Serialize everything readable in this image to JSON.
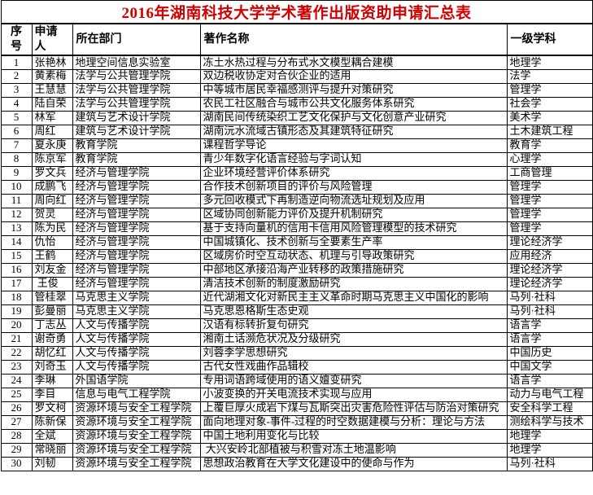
{
  "title": "2016年湖南科技大学学术著作出版资助申请汇总表",
  "colors": {
    "title_red": "#d10000",
    "border": "#000000",
    "background": "#ffffff"
  },
  "table": {
    "headers": [
      "序号",
      "申请人",
      "所在部门",
      "著作名称",
      "一级学科"
    ],
    "column_names": [
      "cell-index",
      "cell-applicant",
      "cell-department",
      "cell-work-title",
      "cell-discipline"
    ],
    "rows": [
      [
        "1",
        "张艳林",
        "地理空间信息实验室",
        "冻土水热过程与分布式水文模型耦合建模",
        "地理学"
      ],
      [
        "2",
        "黄素梅",
        "法学与公共管理学院",
        "双边税收协定对合伙企业的适用",
        "法学"
      ],
      [
        "3",
        "王慧慧",
        "法学与公共管理学院",
        "中等城市居民幸福感测评与提升对策研究",
        "管理学"
      ],
      [
        "4",
        "陆自荣",
        "法学与公共管理学院",
        "农民工社区融合与城市公共文化服务体系研究",
        "社会学"
      ],
      [
        "5",
        "林军",
        "建筑与艺术设计学院",
        "湖南民间传统染织工艺文化保护与文化创意产业研究",
        "美术学"
      ],
      [
        "6",
        "周红",
        "建筑与艺术设计学院",
        "湖南沅水流域古镇形态及其建筑特征研究",
        "土木建筑工程"
      ],
      [
        "7",
        "夏永庚",
        "教育学院",
        "课程哲学导论",
        "教育学"
      ],
      [
        "8",
        "陈京军",
        "教育学院",
        "青少年数字化语言经验与字词认知",
        "心理学"
      ],
      [
        "9",
        "罗文兵",
        "经济与管理学院",
        "企业环境经营评价体系研究",
        "工商管理"
      ],
      [
        "10",
        "成鹏飞",
        "经济与管理学院",
        "合作技术创新项目的评价与风险管理",
        "管理学"
      ],
      [
        "11",
        "周向红",
        "经济与管理学院",
        "多元回收模式下再制造逆向物流选址规划及应用",
        "管理学"
      ],
      [
        "12",
        "贺灵",
        "经济与管理学院",
        "区域协同创新能力评价及提升机制研究",
        "管理学"
      ],
      [
        "13",
        "陈为民",
        "经济与管理学院",
        "基于支持向量机的信用卡信用风险管理模型的技术研究",
        "管理学"
      ],
      [
        "14",
        "仇怡",
        "经济与管理学院",
        "中国城镇化、技术创新与全要素生产率",
        "理论经济学"
      ],
      [
        "15",
        "王鹤",
        "经济与管理学院",
        "区域房价时空互动状态、机理与引导政策研究",
        "应用经济"
      ],
      [
        "16",
        "刘友金",
        "经济与管理学院",
        "中部地区承接沿海产业转移的政策措施研究",
        "理论经济学"
      ],
      [
        "17",
        " 王俊",
        "经济与管理学院",
        "清洁技术创新的制度激励研究",
        "理论经济学"
      ],
      [
        "18",
        "管桂翠",
        "马克思主义学院",
        "近代湖湘文化对新民主主义革命时期马克思主义中国化的影响",
        "马列·社科"
      ],
      [
        "19",
        "彭曼丽",
        "马克思主义学院",
        "马克思恩格斯生态史观",
        "马列·社科"
      ],
      [
        "20",
        "丁志丛",
        "人文与传播学院",
        "汉语有标转折复句研究",
        "语言学"
      ],
      [
        "21",
        "谢奇勇",
        "人文与传播学院",
        "湘南土话濒危状况及分级研究",
        "语言学"
      ],
      [
        "22",
        "胡忆红",
        "人文与传播学院",
        "刘蓉李学思想研究",
        "中国历史"
      ],
      [
        "23",
        "刘奇玉",
        "人文与传播学院",
        "古代女性戏曲作品辑校",
        "中国文学"
      ],
      [
        "24",
        "李琳",
        "外国语学院",
        "专用词语跨域使用的语义嬗变研究",
        "语言学"
      ],
      [
        "25",
        "李目",
        "信息与电气工程学院",
        "小波变换的开关电流技术实现与应用",
        "动力与电气工程"
      ],
      [
        "26",
        "罗文柯",
        "资源环境与安全工程学院",
        "上覆巨厚火成岩下煤与瓦斯突出灾害危险性评估与防治对策研究",
        "安全科学工程"
      ],
      [
        "27",
        "陈新保",
        "资源环境与安全工程学院",
        "面向地理对象-事件-过程的时空数据建模与分析：理论与方法",
        "测绘科学与技术"
      ],
      [
        "28",
        "全斌",
        "资源环境与安全工程学院",
        "中国土地利用变化与比较",
        "地理学"
      ],
      [
        "29",
        "常晓丽",
        "资源环境与安全工程学院",
        " 大兴安岭北部植被与积雪对冻土地温影响",
        "地理学"
      ],
      [
        "30",
        "刘韧",
        "资源环境与安全工程学院",
        "思想政治教育在大学文化建设中的使命与作为",
        "马列·社科"
      ]
    ]
  }
}
